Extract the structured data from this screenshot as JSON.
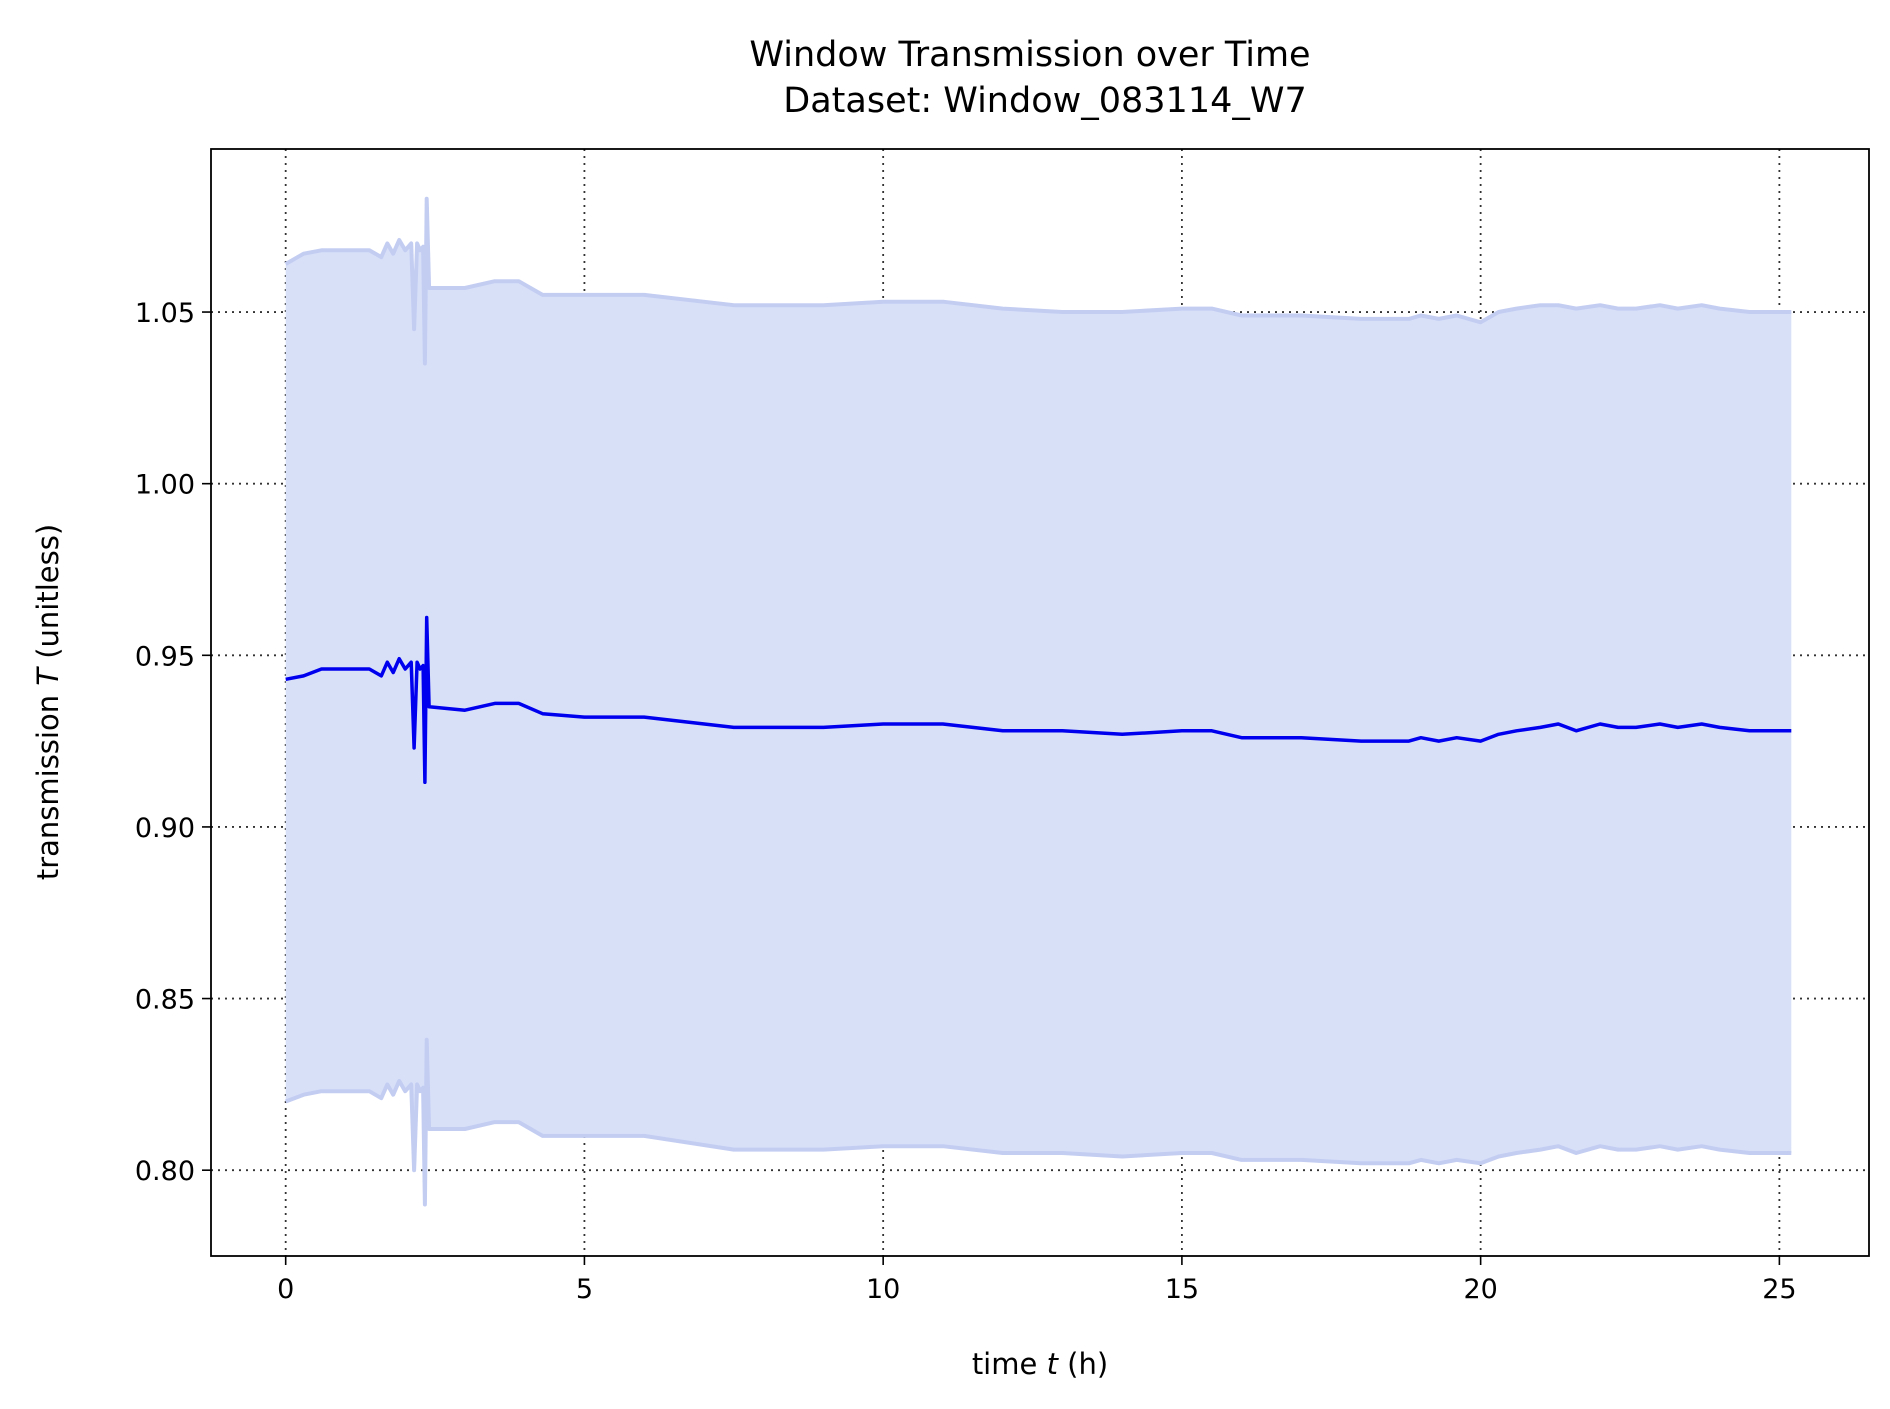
{
  "chart_data": {
    "type": "line",
    "title": "Window Transmission over Time",
    "subtitle": "Dataset: Window_083114_W7",
    "xlabel_prefix": "time ",
    "xlabel_var": "t",
    "xlabel_suffix": " (h)",
    "ylabel_prefix": "transmission ",
    "ylabel_var": "T",
    "ylabel_suffix": " (unitless)",
    "xlim": [
      -1.25,
      26.5
    ],
    "ylim": [
      0.775,
      1.0975
    ],
    "x_ticks": [
      0,
      5,
      10,
      15,
      20,
      25
    ],
    "x_tick_labels": [
      "0",
      "5",
      "10",
      "15",
      "20",
      "25"
    ],
    "y_ticks": [
      0.8,
      0.85,
      0.9,
      0.95,
      1.0,
      1.05
    ],
    "y_tick_labels": [
      "0.80",
      "0.85",
      "0.90",
      "0.95",
      "1.00",
      "1.05"
    ],
    "grid": true,
    "colors": {
      "line": "#0000ee",
      "band_fill": "#d8e0f8",
      "band_edge": "#c3cdf2"
    },
    "series": [
      {
        "x": [
          0,
          0.3,
          0.6,
          1.0,
          1.4,
          1.6,
          1.7,
          1.8,
          1.9,
          2.0,
          2.1,
          2.15,
          2.2,
          2.25,
          2.3,
          2.33,
          2.36,
          2.4,
          3.0,
          3.5,
          3.9,
          4.3,
          5.0,
          6.0,
          7.5,
          9.0,
          10.0,
          11.0,
          12.0,
          13.0,
          14.0,
          15.0,
          15.5,
          16.0,
          16.5,
          17.0,
          18.0,
          18.8,
          19.0,
          19.3,
          19.6,
          20.0,
          20.3,
          20.6,
          21.0,
          21.3,
          21.6,
          22.0,
          22.3,
          22.6,
          23.0,
          23.3,
          23.7,
          24.0,
          24.5,
          25.0,
          25.2
        ],
        "values": [
          0.943,
          0.944,
          0.946,
          0.946,
          0.946,
          0.944,
          0.948,
          0.945,
          0.949,
          0.946,
          0.948,
          0.923,
          0.948,
          0.946,
          0.947,
          0.913,
          0.961,
          0.935,
          0.934,
          0.936,
          0.936,
          0.933,
          0.932,
          0.932,
          0.929,
          0.929,
          0.93,
          0.93,
          0.928,
          0.928,
          0.927,
          0.928,
          0.928,
          0.926,
          0.926,
          0.926,
          0.925,
          0.925,
          0.926,
          0.925,
          0.926,
          0.925,
          0.927,
          0.928,
          0.929,
          0.93,
          0.928,
          0.93,
          0.929,
          0.929,
          0.93,
          0.929,
          0.93,
          0.929,
          0.928,
          0.928,
          0.928
        ],
        "upper": [
          1.064,
          1.067,
          1.068,
          1.068,
          1.068,
          1.066,
          1.07,
          1.067,
          1.071,
          1.068,
          1.07,
          1.045,
          1.07,
          1.068,
          1.069,
          1.035,
          1.083,
          1.057,
          1.057,
          1.059,
          1.059,
          1.055,
          1.055,
          1.055,
          1.052,
          1.052,
          1.053,
          1.053,
          1.051,
          1.05,
          1.05,
          1.051,
          1.051,
          1.049,
          1.049,
          1.049,
          1.048,
          1.048,
          1.049,
          1.048,
          1.049,
          1.047,
          1.05,
          1.051,
          1.052,
          1.052,
          1.051,
          1.052,
          1.051,
          1.051,
          1.052,
          1.051,
          1.052,
          1.051,
          1.05,
          1.05,
          1.05
        ],
        "lower": [
          0.82,
          0.822,
          0.823,
          0.823,
          0.823,
          0.821,
          0.825,
          0.822,
          0.826,
          0.823,
          0.825,
          0.8,
          0.825,
          0.823,
          0.824,
          0.79,
          0.838,
          0.812,
          0.812,
          0.814,
          0.814,
          0.81,
          0.81,
          0.81,
          0.806,
          0.806,
          0.807,
          0.807,
          0.805,
          0.805,
          0.804,
          0.805,
          0.805,
          0.803,
          0.803,
          0.803,
          0.802,
          0.802,
          0.803,
          0.802,
          0.803,
          0.802,
          0.804,
          0.805,
          0.806,
          0.807,
          0.805,
          0.807,
          0.806,
          0.806,
          0.807,
          0.806,
          0.807,
          0.806,
          0.805,
          0.805,
          0.805
        ]
      }
    ]
  }
}
